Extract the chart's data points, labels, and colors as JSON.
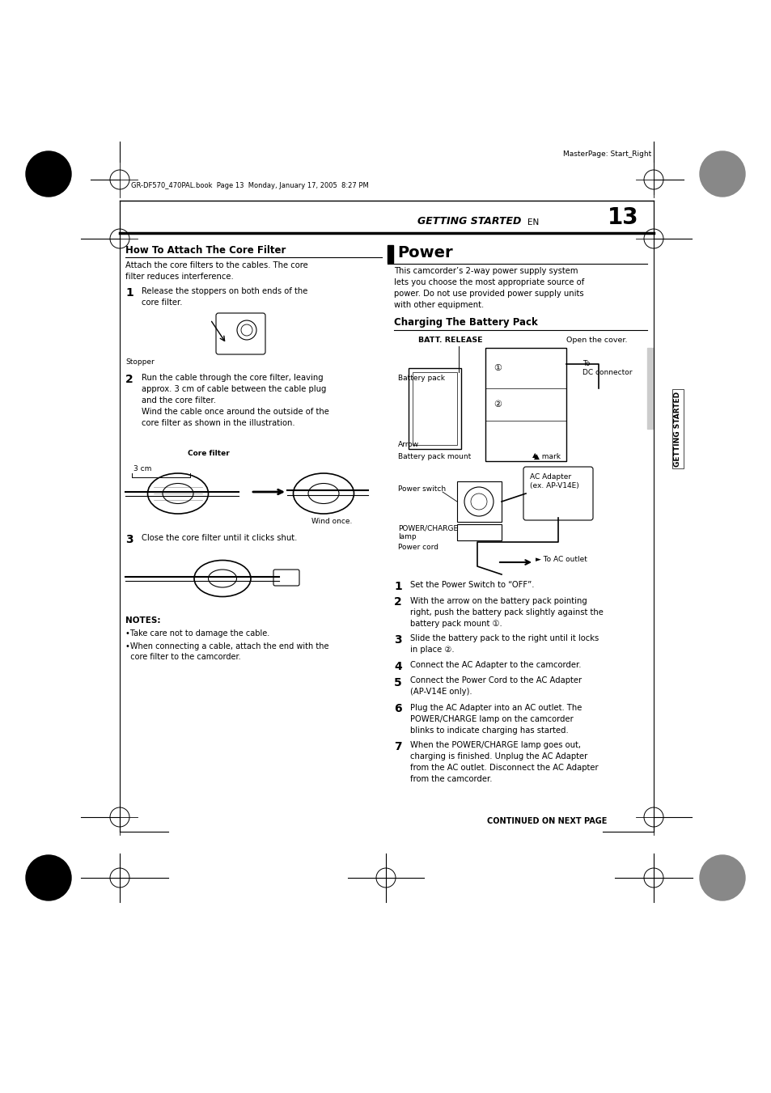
{
  "bg_color": "#ffffff",
  "page_width": 9.54,
  "page_height": 13.51,
  "dpi": 100,
  "header_text": "MasterPage: Start_Right",
  "subheader_text": "GR-DF570_470PAL.book  Page 13  Monday, January 17, 2005  8:27 PM",
  "section_header": "GETTING STARTED",
  "section_en": "EN",
  "section_num": "13",
  "left_title": "How To Attach The Core Filter",
  "left_intro": "Attach the core filters to the cables. The core\nfilter reduces interference.",
  "step1_num": "1",
  "step1_text": "Release the stoppers on both ends of the\ncore filter.",
  "step1_label": "Stopper",
  "step2_num": "2",
  "step2_text": "Run the cable through the core filter, leaving\napprox. 3 cm of cable between the cable plug\nand the core filter.\nWind the cable once around the outside of the\ncore filter as shown in the illustration.",
  "step2_label1": "Core filter",
  "step2_label2": "3 cm",
  "step2_label3": "Wind once.",
  "step3_num": "3",
  "step3_text": "Close the core filter until it clicks shut.",
  "notes_title": "NOTES:",
  "notes_bullet1": "•Take care not to damage the cable.",
  "notes_bullet2": "•When connecting a cable, attach the end with the\n  core filter to the camcorder.",
  "right_title": "Power",
  "right_intro": "This camcorder’s 2-way power supply system\nlets you choose the most appropriate source of\npower. Do not use provided power supply units\nwith other equipment.",
  "charging_title": "Charging The Battery Pack",
  "batt_label1": "BATT. RELEASE",
  "batt_label2": "Open the cover.",
  "batt_label3": "Battery pack",
  "batt_label4": "To\nDC connector",
  "batt_label5": "Arrow",
  "batt_label6": "Battery pack mount",
  "batt_label7": "▲ mark",
  "batt_label8": "Power switch",
  "batt_label9": "AC Adapter\n(ex. AP-V14E)",
  "batt_label10": "POWER/CHARGE\nlamp",
  "batt_label11": "Power cord",
  "batt_label12": "► To AC outlet",
  "r_step1_num": "1",
  "r_step1_text": "Set the Power Switch to “OFF”.",
  "r_step2_num": "2",
  "r_step2_text": "With the arrow on the battery pack pointing\nright, push the battery pack slightly against the\nbattery pack mount ①.",
  "r_step3_num": "3",
  "r_step3_text": "Slide the battery pack to the right until it locks\nin place ②.",
  "r_step4_num": "4",
  "r_step4_text": "Connect the AC Adapter to the camcorder.",
  "r_step5_num": "5",
  "r_step5_text": "Connect the Power Cord to the AC Adapter\n(AP-V14E only).",
  "r_step6_num": "6",
  "r_step6_text": "Plug the AC Adapter into an AC outlet. The\nPOWER/CHARGE lamp on the camcorder\nblinks to indicate charging has started.",
  "r_step7_num": "7",
  "r_step7_text": "When the POWER/CHARGE lamp goes out,\ncharging is finished. Unplug the AC Adapter\nfrom the AC outlet. Disconnect the AC Adapter\nfrom the camcorder.",
  "sidebar_text": "GETTING STARTED",
  "continued_text": "CONTINUED ON NEXT PAGE"
}
